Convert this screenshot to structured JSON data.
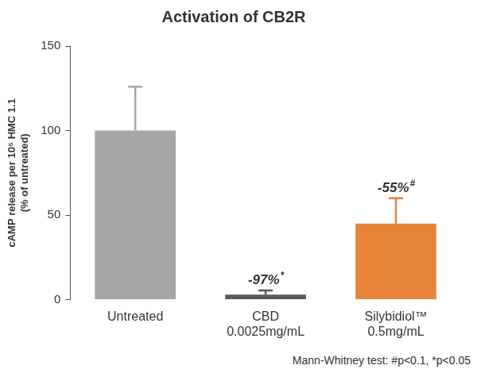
{
  "chart_data": {
    "type": "bar",
    "title": "Activation of CB2R",
    "y_label": [
      "cAMP release per 10⁵ HMC 1.1",
      "(% of untreated)"
    ],
    "categories": [
      "Untreated",
      [
        "CBD",
        "0.0025mg/mL"
      ],
      [
        "Silybidiol™",
        "0.5mg/mL"
      ]
    ],
    "values": [
      100,
      3,
      45
    ],
    "errors": [
      26,
      2.5,
      15
    ],
    "colors": [
      "#a6a6a6",
      "#595959",
      "#e8833a"
    ],
    "annotations": [
      null,
      "-97%*",
      "-55%#"
    ],
    "ylim": [
      0,
      150
    ],
    "yticks": [
      0,
      50,
      100,
      150
    ],
    "grid": false,
    "footnote": "Mann-Whitney test: #p<0.1, *p<0.05"
  }
}
